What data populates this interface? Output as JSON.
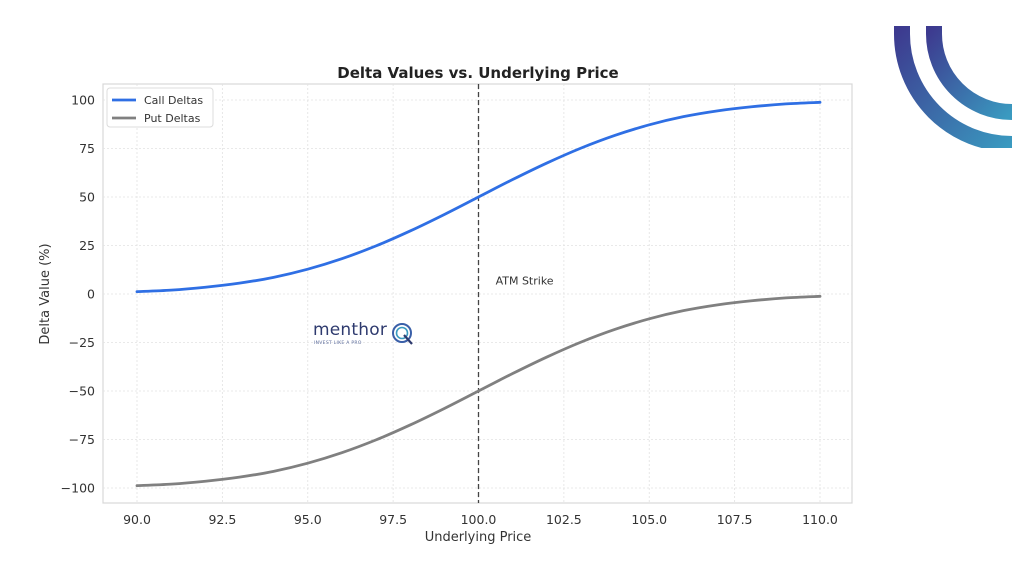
{
  "chart_data": {
    "type": "line",
    "title": "Delta Values vs. Underlying Price",
    "xlabel": "Underlying Price",
    "ylabel": "Delta Value (%)",
    "xlim": [
      89,
      111
    ],
    "ylim": [
      -108,
      108
    ],
    "xticks": [
      90.0,
      92.5,
      95.0,
      97.5,
      100.0,
      102.5,
      105.0,
      107.5,
      110.0
    ],
    "xtick_labels": [
      "90.0",
      "92.5",
      "95.0",
      "97.5",
      "100.0",
      "102.5",
      "105.0",
      "107.5",
      "110.0"
    ],
    "yticks": [
      100,
      75,
      50,
      25,
      0,
      -25,
      -50,
      -75,
      -100
    ],
    "ytick_labels": [
      "100",
      "75",
      "50",
      "25",
      "0",
      "−25",
      "−50",
      "−75",
      "−100"
    ],
    "grid": true,
    "legend_position": "upper left",
    "x": [
      90,
      91,
      92,
      93,
      94,
      95,
      96,
      97,
      98,
      99,
      100,
      101,
      102,
      103,
      104,
      105,
      106,
      107,
      108,
      109,
      110
    ],
    "series": [
      {
        "name": "Call Deltas",
        "color": "#2f6fe4",
        "values": [
          1.2,
          2.0,
          3.5,
          5.6,
          8.6,
          12.8,
          18.2,
          24.8,
          32.5,
          41.0,
          50.0,
          59.0,
          67.5,
          75.2,
          81.8,
          87.2,
          91.4,
          94.4,
          96.5,
          98.0,
          98.8
        ]
      },
      {
        "name": "Put Deltas",
        "color": "#808080",
        "values": [
          -98.8,
          -98.0,
          -96.5,
          -94.4,
          -91.4,
          -87.2,
          -81.8,
          -75.2,
          -67.5,
          -59.0,
          -50.0,
          -41.0,
          -32.5,
          -24.8,
          -18.2,
          -12.8,
          -8.6,
          -5.6,
          -3.5,
          -2.0,
          -1.2
        ]
      }
    ],
    "annotations": [
      {
        "type": "vline",
        "x": 100.0,
        "style": "dashed",
        "color": "#444444"
      },
      {
        "type": "text",
        "x": 100.5,
        "y": 5,
        "text": "ATM Strike"
      }
    ]
  },
  "watermark": {
    "brand": "menthor",
    "tagline": "INVEST LIKE A PRO"
  },
  "colors": {
    "call": "#2f6fe4",
    "put": "#808080",
    "arc_start": "#3d3a8f",
    "arc_end": "#3a9ac0"
  }
}
